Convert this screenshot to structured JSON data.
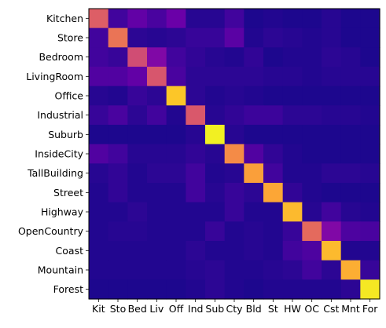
{
  "chart_data": {
    "type": "heatmap",
    "title": "",
    "xlabel": "",
    "ylabel": "",
    "colormap": "plasma",
    "value_range": [
      0,
      1
    ],
    "row_labels": [
      "Kitchen",
      "Store",
      "Bedroom",
      "LivingRoom",
      "Office",
      "Industrial",
      "Suburb",
      "InsideCity",
      "TallBuilding",
      "Street",
      "Highway",
      "OpenCountry",
      "Coast",
      "Mountain",
      "Forest"
    ],
    "col_labels": [
      "Kit",
      "Sto",
      "Bed",
      "Liv",
      "Off",
      "Ind",
      "Sub",
      "Cty",
      "Bld",
      "St",
      "HW",
      "OC",
      "Cst",
      "Mnt",
      "For"
    ],
    "values": [
      [
        0.58,
        0.1,
        0.18,
        0.12,
        0.2,
        0.05,
        0.05,
        0.1,
        0.03,
        0.04,
        0.03,
        0.03,
        0.05,
        0.03,
        0.03
      ],
      [
        0.1,
        0.65,
        0.06,
        0.05,
        0.06,
        0.08,
        0.08,
        0.16,
        0.04,
        0.06,
        0.05,
        0.04,
        0.05,
        0.03,
        0.03
      ],
      [
        0.1,
        0.08,
        0.52,
        0.26,
        0.1,
        0.07,
        0.05,
        0.04,
        0.07,
        0.03,
        0.04,
        0.04,
        0.06,
        0.05,
        0.03
      ],
      [
        0.14,
        0.14,
        0.18,
        0.55,
        0.12,
        0.06,
        0.06,
        0.06,
        0.06,
        0.05,
        0.05,
        0.04,
        0.05,
        0.05,
        0.05
      ],
      [
        0.05,
        0.04,
        0.08,
        0.06,
        0.88,
        0.06,
        0.04,
        0.05,
        0.04,
        0.03,
        0.03,
        0.03,
        0.03,
        0.03,
        0.03
      ],
      [
        0.08,
        0.12,
        0.06,
        0.1,
        0.04,
        0.56,
        0.05,
        0.07,
        0.09,
        0.09,
        0.06,
        0.06,
        0.05,
        0.05,
        0.04
      ],
      [
        0.03,
        0.03,
        0.03,
        0.03,
        0.03,
        0.05,
        0.98,
        0.05,
        0.03,
        0.03,
        0.03,
        0.03,
        0.03,
        0.03,
        0.03
      ],
      [
        0.14,
        0.1,
        0.05,
        0.05,
        0.05,
        0.07,
        0.05,
        0.72,
        0.14,
        0.07,
        0.04,
        0.03,
        0.03,
        0.03,
        0.03
      ],
      [
        0.05,
        0.07,
        0.04,
        0.06,
        0.06,
        0.1,
        0.04,
        0.05,
        0.78,
        0.1,
        0.04,
        0.04,
        0.06,
        0.06,
        0.05
      ],
      [
        0.04,
        0.07,
        0.04,
        0.04,
        0.04,
        0.1,
        0.05,
        0.08,
        0.06,
        0.8,
        0.07,
        0.04,
        0.03,
        0.03,
        0.03
      ],
      [
        0.04,
        0.04,
        0.06,
        0.04,
        0.04,
        0.04,
        0.04,
        0.08,
        0.04,
        0.04,
        0.85,
        0.05,
        0.1,
        0.05,
        0.04
      ],
      [
        0.04,
        0.05,
        0.05,
        0.04,
        0.04,
        0.04,
        0.08,
        0.04,
        0.05,
        0.04,
        0.08,
        0.62,
        0.26,
        0.13,
        0.12
      ],
      [
        0.04,
        0.04,
        0.04,
        0.04,
        0.04,
        0.06,
        0.04,
        0.04,
        0.05,
        0.04,
        0.1,
        0.13,
        0.85,
        0.04,
        0.04
      ],
      [
        0.04,
        0.04,
        0.04,
        0.04,
        0.04,
        0.05,
        0.06,
        0.04,
        0.04,
        0.05,
        0.06,
        0.1,
        0.06,
        0.82,
        0.08
      ],
      [
        0.03,
        0.03,
        0.03,
        0.03,
        0.03,
        0.04,
        0.06,
        0.04,
        0.03,
        0.04,
        0.04,
        0.04,
        0.04,
        0.06,
        0.96
      ]
    ]
  }
}
